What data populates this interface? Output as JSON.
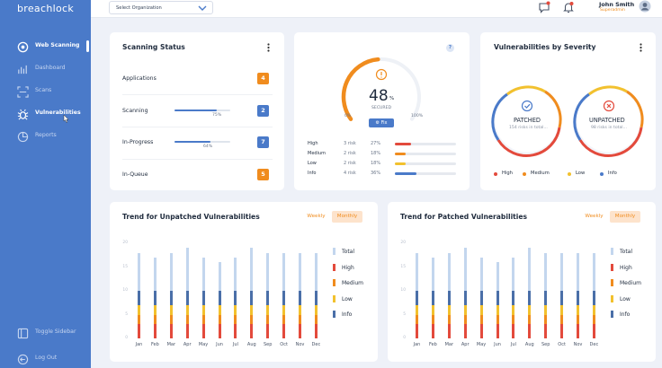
{
  "app": {
    "logo": "breachlock"
  },
  "sidebar": {
    "items": [
      {
        "label": "Web Scanning",
        "icon": "radar-icon"
      },
      {
        "label": "Dashboard",
        "icon": "dashboard-icon"
      },
      {
        "label": "Scans",
        "icon": "scan-icon"
      },
      {
        "label": "Vulnerabilities",
        "icon": "bug-icon"
      },
      {
        "label": "Reports",
        "icon": "pie-chart-icon"
      }
    ],
    "toggle_label": "Toggle Sidebar",
    "logout_label": "Log Out"
  },
  "header": {
    "org_select": "Select Organization",
    "user_name": "John Smith",
    "user_role": "Superadmin"
  },
  "scanning_status": {
    "title": "Scanning Status",
    "rows": [
      {
        "label": "Applications",
        "count": "4",
        "color": "#f08c1e",
        "progress": null
      },
      {
        "label": "Scanning",
        "count": "2",
        "color": "#4a7ac9",
        "progress": 75,
        "progress_text": "75%"
      },
      {
        "label": "In-Progress",
        "count": "7",
        "color": "#4a7ac9",
        "progress": 64,
        "progress_text": "64%"
      },
      {
        "label": "In-Queue",
        "count": "5",
        "color": "#f08c1e",
        "progress": null
      }
    ]
  },
  "secured": {
    "value": "48",
    "unit": "%",
    "label": "SECURED",
    "min": "0%",
    "max": "100%",
    "fix_label": "Fix",
    "help": "?",
    "gauge_fraction": 0.48,
    "risks": [
      {
        "label": "High",
        "count": "3 risk",
        "pct": "27%",
        "frac": 0.27,
        "color": "#e34a3c"
      },
      {
        "label": "Medium",
        "count": "2 risk",
        "pct": "18%",
        "frac": 0.18,
        "color": "#f08c1e"
      },
      {
        "label": "Low",
        "count": "2 risk",
        "pct": "18%",
        "frac": 0.18,
        "color": "#f2c12e"
      },
      {
        "label": "Info",
        "count": "4 risk",
        "pct": "36%",
        "frac": 0.36,
        "color": "#4a7ac9"
      }
    ]
  },
  "severity": {
    "title": "Vulnerabilities by Severity",
    "patched": {
      "title": "PATCHED",
      "sub": "154 risks in total..."
    },
    "unpatched": {
      "title": "UNPATCHED",
      "sub": "98 risks in total..."
    },
    "legend": [
      {
        "label": "High",
        "color": "#e34a3c"
      },
      {
        "label": "Medium",
        "color": "#f08c1e"
      },
      {
        "label": "Low",
        "color": "#f2c12e"
      },
      {
        "label": "Info",
        "color": "#4a7ac9"
      }
    ]
  },
  "trend_unpatched": {
    "title": "Trend for Unpatched Vulnerabilities",
    "weekly": "Weekly",
    "monthly": "Monthly"
  },
  "trend_patched": {
    "title": "Trend for Patched Vulnerabilities",
    "weekly": "Weekly",
    "monthly": "Monthly"
  },
  "trend_legend": [
    {
      "label": "Total",
      "color": "#c3d6ee"
    },
    {
      "label": "High",
      "color": "#e34a3c"
    },
    {
      "label": "Medium",
      "color": "#f08c1e"
    },
    {
      "label": "Low",
      "color": "#f2c12e"
    },
    {
      "label": "Info",
      "color": "#4a6fa8"
    }
  ],
  "chart_data": [
    {
      "type": "bar",
      "title": "Trend for Unpatched Vulnerabilities",
      "categories": [
        "Jan",
        "Feb",
        "Mar",
        "Apr",
        "May",
        "Jun",
        "Jul",
        "Aug",
        "Sep",
        "Oct",
        "Nov",
        "Dec"
      ],
      "yticks": [
        "20",
        "15",
        "10",
        "5",
        "0"
      ],
      "ylim": [
        0,
        20
      ],
      "series": [
        {
          "name": "Total",
          "values": [
            18,
            17,
            18,
            19,
            17,
            16,
            17,
            19,
            18,
            18,
            18,
            18
          ]
        },
        {
          "name": "Info",
          "values": [
            10,
            10,
            10,
            10,
            10,
            10,
            10,
            10,
            10,
            10,
            10,
            10
          ]
        },
        {
          "name": "Low",
          "values": [
            7,
            7,
            7,
            7,
            7,
            7,
            7,
            7,
            7,
            7,
            7,
            7
          ]
        },
        {
          "name": "Medium",
          "values": [
            5,
            5,
            5,
            5,
            5,
            5,
            5,
            5,
            5,
            5,
            5,
            5
          ]
        },
        {
          "name": "High",
          "values": [
            3,
            3,
            3,
            3,
            3,
            3,
            3,
            3,
            3,
            3,
            3,
            3
          ]
        }
      ]
    },
    {
      "type": "bar",
      "title": "Trend for Patched Vulnerabilities",
      "categories": [
        "Jan",
        "Feb",
        "Mar",
        "Apr",
        "May",
        "Jun",
        "Jul",
        "Aug",
        "Sep",
        "Oct",
        "Nov",
        "Dec"
      ],
      "yticks": [
        "20",
        "15",
        "10",
        "5",
        "0"
      ],
      "ylim": [
        0,
        20
      ],
      "series": [
        {
          "name": "Total",
          "values": [
            18,
            17,
            18,
            19,
            17,
            16,
            17,
            19,
            18,
            18,
            18,
            18
          ]
        },
        {
          "name": "Info",
          "values": [
            10,
            10,
            10,
            10,
            10,
            10,
            10,
            10,
            10,
            10,
            10,
            10
          ]
        },
        {
          "name": "Low",
          "values": [
            7,
            7,
            7,
            7,
            7,
            7,
            7,
            7,
            7,
            7,
            7,
            7
          ]
        },
        {
          "name": "Medium",
          "values": [
            5,
            5,
            5,
            5,
            5,
            5,
            5,
            5,
            5,
            5,
            5,
            5
          ]
        },
        {
          "name": "High",
          "values": [
            3,
            3,
            3,
            3,
            3,
            3,
            3,
            3,
            3,
            3,
            3,
            3
          ]
        }
      ]
    }
  ]
}
